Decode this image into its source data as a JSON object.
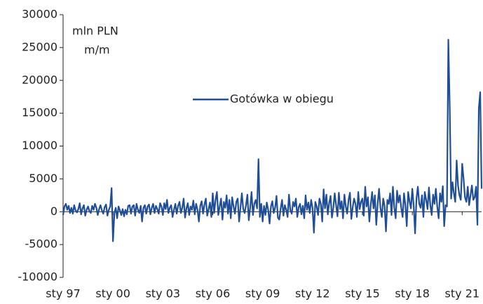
{
  "chart_data": {
    "type": "line",
    "y_label_lines": [
      "mln PLN",
      "m/m"
    ],
    "legend": "center",
    "categories": [
      "sty 97",
      null,
      null,
      null,
      null,
      null,
      null,
      null,
      null,
      null,
      null,
      null,
      null,
      null,
      null,
      null,
      null,
      null,
      null,
      null,
      null,
      null,
      null,
      null,
      null,
      null,
      null,
      null,
      null,
      null,
      null,
      null,
      null,
      null,
      null,
      null,
      "sty 00",
      null,
      null,
      null,
      null,
      null,
      null,
      null,
      null,
      null,
      null,
      null,
      null,
      null,
      null,
      null,
      null,
      null,
      null,
      null,
      null,
      null,
      null,
      null,
      null,
      null,
      null,
      null,
      null,
      null,
      null,
      null,
      null,
      null,
      null,
      null,
      "sty 03",
      null,
      null,
      null,
      null,
      null,
      null,
      null,
      null,
      null,
      null,
      null,
      null,
      null,
      null,
      null,
      null,
      null,
      null,
      null,
      null,
      null,
      null,
      null,
      null,
      null,
      null,
      null,
      null,
      null,
      null,
      null,
      null,
      null,
      null,
      null,
      "sty 06",
      null,
      null,
      null,
      null,
      null,
      null,
      null,
      null,
      null,
      null,
      null,
      null,
      null,
      null,
      null,
      null,
      null,
      null,
      null,
      null,
      null,
      null,
      null,
      null,
      null,
      null,
      null,
      null,
      null,
      null,
      null,
      null,
      null,
      null,
      null,
      "sty 09",
      null,
      null,
      null,
      null,
      null,
      null,
      null,
      null,
      null,
      null,
      null,
      null,
      null,
      null,
      null,
      null,
      null,
      null,
      null,
      null,
      null,
      null,
      null,
      null,
      null,
      null,
      null,
      null,
      null,
      null,
      null,
      null,
      null,
      null,
      null,
      "sty 12",
      null,
      null,
      null,
      null,
      null,
      null,
      null,
      null,
      null,
      null,
      null,
      null,
      null,
      null,
      null,
      null,
      null,
      null,
      null,
      null,
      null,
      null,
      null,
      null,
      null,
      null,
      null,
      null,
      null,
      null,
      null,
      null,
      null,
      null,
      null,
      "sty 15",
      null,
      null,
      null,
      null,
      null,
      null,
      null,
      null,
      null,
      null,
      null,
      null,
      null,
      null,
      null,
      null,
      null,
      null,
      null,
      null,
      null,
      null,
      null,
      null,
      null,
      null,
      null,
      null,
      null,
      null,
      null,
      null,
      null,
      null,
      null,
      "sty 18",
      null,
      null,
      null,
      null,
      null,
      null,
      null,
      null,
      null,
      null,
      null,
      null,
      null,
      null,
      null,
      null,
      null,
      null,
      null,
      null,
      null,
      null,
      null,
      null,
      null,
      null,
      null,
      null,
      null,
      null,
      null,
      null,
      null,
      null,
      null,
      "sty 21",
      null,
      null,
      null,
      null,
      null,
      null,
      null,
      null,
      null,
      null,
      null,
      null,
      null,
      null
    ],
    "series": [
      {
        "name": "Gotówka w obiegu",
        "color": "#1f4e96",
        "values": [
          -500,
          800,
          1200,
          300,
          900,
          -200,
          600,
          -300,
          1000,
          200,
          -100,
          400,
          1300,
          -400,
          500,
          1000,
          -600,
          300,
          800,
          100,
          -200,
          900,
          300,
          1200,
          600,
          -500,
          400,
          1000,
          200,
          -300,
          700,
          1100,
          -600,
          300,
          800,
          3600,
          -4500,
          -300,
          600,
          -1000,
          800,
          200,
          -500,
          400,
          -700,
          300,
          -400,
          900,
          1000,
          -300,
          800,
          1000,
          -600,
          1200,
          300,
          -200,
          900,
          -1500,
          600,
          1000,
          -300,
          800,
          1100,
          -400,
          600,
          1200,
          -200,
          900,
          400,
          -300,
          1300,
          800,
          -500,
          1300,
          400,
          1800,
          -200,
          600,
          1000,
          -800,
          300,
          1200,
          -300,
          900,
          1500,
          -200,
          600,
          2000,
          -900,
          500,
          1300,
          -500,
          800,
          300,
          1700,
          -400,
          1200,
          300,
          -1500,
          900,
          1600,
          -300,
          1100,
          2000,
          -600,
          400,
          1400,
          -800,
          2800,
          -200,
          1800,
          3000,
          -500,
          800,
          2000,
          -1200,
          1500,
          600,
          2500,
          -300,
          1800,
          -1000,
          2200,
          800,
          -300,
          1500,
          2000,
          -1500,
          600,
          2800,
          400,
          -200,
          1000,
          2600,
          -1300,
          600,
          3000,
          -500,
          1200,
          1800,
          500,
          8000,
          -800,
          1200,
          -1500,
          900,
          -500,
          1400,
          300,
          -1800,
          800,
          1600,
          -200,
          600,
          2400,
          -900,
          -1200,
          500,
          1800,
          -600,
          1000,
          300,
          -800,
          2600,
          200,
          -300,
          1500,
          800,
          2000,
          -800,
          700,
          1200,
          -400,
          900,
          -1000,
          2500,
          300,
          1400,
          -200,
          1800,
          600,
          -3200,
          1500,
          800,
          -500,
          2000,
          1200,
          -1500,
          3400,
          500,
          2600,
          -400,
          1300,
          2400,
          -900,
          600,
          2800,
          1000,
          -700,
          2900,
          400,
          1600,
          -1000,
          2600,
          800,
          -300,
          1800,
          2900,
          -1100,
          700,
          2000,
          1200,
          -800,
          3000,
          400,
          1500,
          2000,
          -600,
          3800,
          800,
          2200,
          -1500,
          1000,
          3000,
          500,
          2500,
          -2000,
          1200,
          3500,
          600,
          -800,
          2000,
          900,
          -3000,
          1800,
          1200,
          2800,
          -500,
          3800,
          600,
          -1000,
          3200,
          1400,
          2500,
          600,
          -800,
          2800,
          1000,
          -2200,
          3000,
          1600,
          500,
          3500,
          900,
          -3300,
          2000,
          3800,
          1200,
          600,
          2500,
          -800,
          3000,
          1800,
          400,
          3700,
          1000,
          -500,
          2600,
          1200,
          3500,
          800,
          -1000,
          2800,
          1500,
          3900,
          -2200,
          1000,
          800,
          26200,
          16000,
          2000,
          4500,
          2800,
          1500,
          7800,
          4000,
          2500,
          1800,
          7300,
          5000,
          2200,
          1500,
          3800,
          1000,
          2500,
          4000,
          1800,
          2200,
          3800,
          -2000,
          15800,
          18200,
          3500
        ]
      }
    ],
    "ylim": [
      -10000,
      30000
    ],
    "yticks": [
      -10000,
      -5000,
      0,
      5000,
      10000,
      15000,
      20000,
      25000,
      30000
    ]
  }
}
